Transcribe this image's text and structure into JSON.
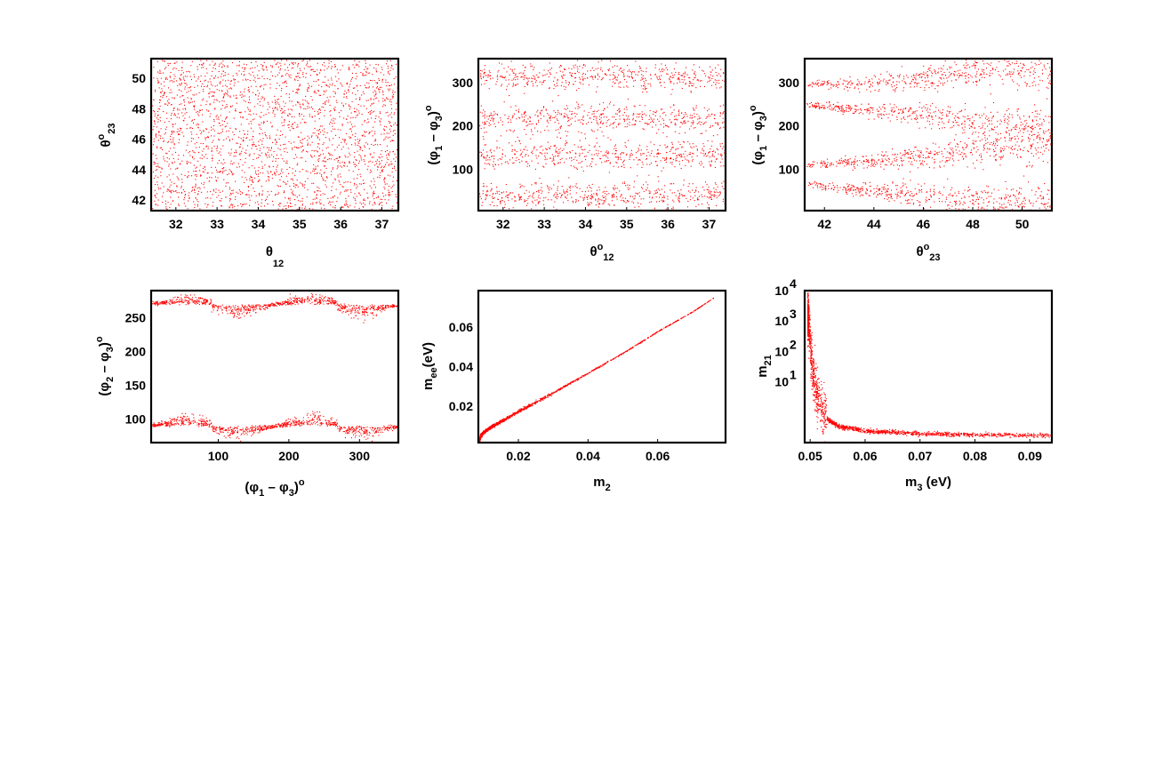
{
  "chart_data": [
    {
      "id": "p1",
      "type": "scatter",
      "xlabel": "θ12°",
      "ylabel": "θ23°",
      "xlim": [
        31.4,
        37.4
      ],
      "ylim": [
        41.3,
        51.3
      ],
      "xticks": [
        "32",
        "33",
        "34",
        "35",
        "36",
        "37"
      ],
      "xtick_values": [
        32,
        33,
        34,
        35,
        36,
        37
      ],
      "yticks": [
        "42",
        "44",
        "46",
        "48",
        "50"
      ],
      "ytick_values": [
        42,
        44,
        46,
        48,
        50
      ],
      "color": "#ff0000",
      "distribution": "uniform over the full θ12 and θ23 ranges"
    },
    {
      "id": "p2",
      "type": "scatter",
      "xlabel": "θ12°",
      "ylabel": "(φ1 − φ3)°",
      "xlim": [
        31.4,
        37.4
      ],
      "ylim": [
        5,
        355
      ],
      "xticks": [
        "32",
        "33",
        "34",
        "35",
        "36",
        "37"
      ],
      "xtick_values": [
        32,
        33,
        34,
        35,
        36,
        37
      ],
      "yticks": [
        "100",
        "200",
        "300"
      ],
      "ytick_values": [
        100,
        200,
        300
      ],
      "color": "#ff0000",
      "bands": [
        [
          10,
          70
        ],
        [
          100,
          170
        ],
        [
          185,
          250
        ],
        [
          285,
          345
        ]
      ]
    },
    {
      "id": "p3",
      "type": "scatter",
      "xlabel": "θ23°",
      "ylabel": "(φ1 − φ3)°",
      "xlim": [
        41.2,
        51.2
      ],
      "ylim": [
        5,
        355
      ],
      "xticks": [
        "42",
        "44",
        "46",
        "48",
        "50"
      ],
      "xtick_values": [
        42,
        44,
        46,
        48,
        50
      ],
      "yticks": [
        "100",
        "200",
        "300"
      ],
      "ytick_values": [
        100,
        200,
        300
      ],
      "color": "#ff0000",
      "branch_centers_at_x": [
        [
          41.3,
          42,
          44,
          46,
          48,
          50,
          51.1
        ]
      ],
      "branches": [
        {
          "x": [
            41.3,
            42,
            44,
            46,
            48,
            50,
            51.1
          ],
          "y": [
            295,
            295,
            300,
            310,
            330,
            335,
            332
          ]
        },
        {
          "x": [
            41.3,
            42,
            44,
            46,
            48,
            50,
            51.1
          ],
          "y": [
            250,
            245,
            235,
            228,
            210,
            195,
            190
          ]
        },
        {
          "x": [
            41.3,
            42,
            44,
            46,
            48,
            50,
            51.1
          ],
          "y": [
            110,
            115,
            120,
            130,
            150,
            160,
            160
          ]
        },
        {
          "x": [
            41.3,
            42,
            44,
            46,
            48,
            50,
            51.1
          ],
          "y": [
            70,
            60,
            52,
            42,
            30,
            22,
            20
          ]
        }
      ]
    },
    {
      "id": "p4",
      "type": "scatter",
      "xlabel": "(φ1 − φ3)°",
      "ylabel": "(φ2 − φ3)°",
      "xlim": [
        5,
        355
      ],
      "ylim": [
        65,
        290
      ],
      "xticks": [
        "100",
        "200",
        "300"
      ],
      "xtick_values": [
        100,
        200,
        300
      ],
      "yticks": [
        "100",
        "150",
        "200",
        "250"
      ],
      "ytick_values": [
        100,
        150,
        200,
        250
      ],
      "color": "#ff0000",
      "upper_band_center": 270,
      "lower_band_center": 90,
      "upper_lobes": [
        {
          "x": 55,
          "dir": 1
        },
        {
          "x": 125,
          "dir": -1
        },
        {
          "x": 232,
          "dir": 1
        },
        {
          "x": 305,
          "dir": -1
        }
      ],
      "lower_lobes": [
        {
          "x": 55,
          "dir": 1
        },
        {
          "x": 125,
          "dir": -1
        },
        {
          "x": 232,
          "dir": 1
        },
        {
          "x": 305,
          "dir": -1
        }
      ]
    },
    {
      "id": "p5",
      "type": "scatter",
      "xlabel": "m2",
      "ylabel": "mee(eV)",
      "xlim": [
        0.0085,
        0.0795
      ],
      "ylim": [
        0.0015,
        0.0785
      ],
      "xticks": [
        "0.02",
        "0.04",
        "0.06"
      ],
      "xtick_values": [
        0.02,
        0.04,
        0.06
      ],
      "yticks": [
        "0.02",
        "0.04",
        "0.06"
      ],
      "ytick_values": [
        0.02,
        0.04,
        0.06
      ],
      "color": "#ff0000",
      "curve": {
        "x": [
          0.0088,
          0.009,
          0.01,
          0.012,
          0.015,
          0.02,
          0.03,
          0.04,
          0.05,
          0.06,
          0.07,
          0.076
        ],
        "y": [
          0.003,
          0.005,
          0.007,
          0.0095,
          0.0125,
          0.0175,
          0.027,
          0.037,
          0.047,
          0.058,
          0.068,
          0.075
        ]
      }
    },
    {
      "id": "p6",
      "type": "scatter",
      "xlabel": "m3 (eV)",
      "ylabel": "m21",
      "xscale": "linear",
      "yscale": "log",
      "xlim": [
        0.049,
        0.094
      ],
      "ylim": [
        0.1,
        10000
      ],
      "xticks": [
        "0.05",
        "0.06",
        "0.07",
        "0.08",
        "0.09"
      ],
      "xtick_values": [
        0.05,
        0.06,
        0.07,
        0.08,
        0.09
      ],
      "yticks": [
        {
          "base": "10",
          "exp": "1",
          "value": 10
        },
        {
          "base": "10",
          "exp": "2",
          "value": 100
        },
        {
          "base": "10",
          "exp": "3",
          "value": 1000
        },
        {
          "base": "10",
          "exp": "4",
          "value": 10000
        }
      ],
      "color": "#ff0000",
      "curve": {
        "x": [
          0.0495,
          0.05,
          0.0505,
          0.051,
          0.052,
          0.053,
          0.055,
          0.06,
          0.07,
          0.08,
          0.09,
          0.094
        ],
        "y": [
          1500,
          80,
          15,
          4,
          1.2,
          0.6,
          0.35,
          0.25,
          0.2,
          0.19,
          0.18,
          0.18
        ]
      }
    }
  ]
}
